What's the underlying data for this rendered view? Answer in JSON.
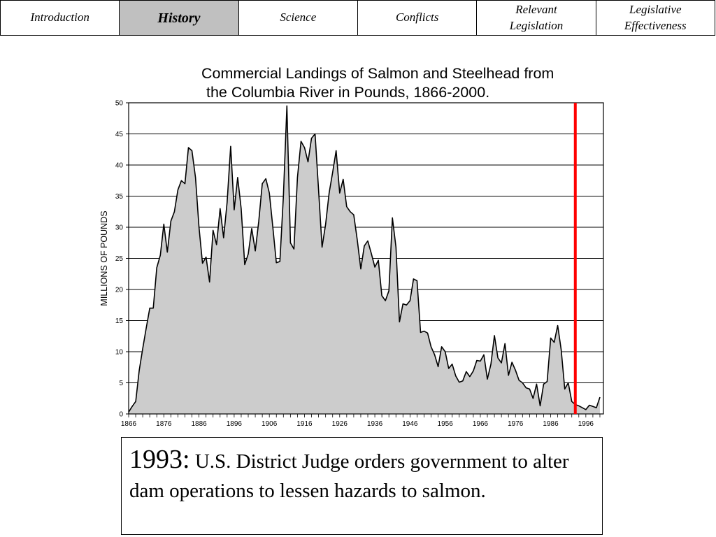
{
  "nav": {
    "tabs": [
      {
        "lines": [
          "Introduction"
        ],
        "active": false
      },
      {
        "lines": [
          "History"
        ],
        "active": true
      },
      {
        "lines": [
          "Science"
        ],
        "active": false
      },
      {
        "lines": [
          "Conflicts"
        ],
        "active": false
      },
      {
        "lines": [
          "Relevant",
          "Legislation"
        ],
        "active": false
      },
      {
        "lines": [
          "Legislative",
          "Effectiveness"
        ],
        "active": false
      }
    ]
  },
  "chart_title": {
    "line1": "Commercial Landings of Salmon and Steelhead from",
    "line2": "the Columbia River in Pounds, 1866-2000."
  },
  "caption": {
    "year": "1993:",
    "text": " U.S. District Judge orders government to alter dam operations to lessen hazards to salmon."
  },
  "chart_data": {
    "type": "area",
    "title": "Commercial Landings of Salmon and Steelhead from the Columbia River in Pounds, 1866-2000.",
    "xlabel": "",
    "ylabel": "MILLIONS OF POUNDS",
    "xlim": [
      1866,
      2001
    ],
    "ylim": [
      0,
      50
    ],
    "x_ticks": [
      1866,
      1876,
      1886,
      1896,
      1906,
      1916,
      1926,
      1936,
      1946,
      1956,
      1966,
      1976,
      1986,
      1996
    ],
    "y_ticks": [
      0,
      5,
      10,
      15,
      20,
      25,
      30,
      35,
      40,
      45,
      50
    ],
    "grid": "horizontal",
    "fill_color": "#cccccc",
    "line_color": "#000000",
    "marker_line": {
      "x": 1993,
      "color": "#ff0000"
    },
    "series": [
      {
        "x": [
          1866,
          1867,
          1868,
          1869,
          1870,
          1871,
          1872,
          1873,
          1874,
          1875,
          1876,
          1877,
          1878,
          1879,
          1880,
          1881,
          1882,
          1883,
          1884,
          1885,
          1886,
          1887,
          1888,
          1889,
          1890,
          1891,
          1892,
          1893,
          1894,
          1895,
          1896,
          1897,
          1898,
          1899,
          1900,
          1901,
          1902,
          1903,
          1904,
          1905,
          1906,
          1907,
          1908,
          1909,
          1910,
          1911,
          1912,
          1913,
          1914,
          1915,
          1916,
          1917,
          1918,
          1919,
          1920,
          1921,
          1922,
          1923,
          1924,
          1925,
          1926,
          1927,
          1928,
          1929,
          1930,
          1931,
          1932,
          1933,
          1934,
          1935,
          1936,
          1937,
          1938,
          1939,
          1940,
          1941,
          1942,
          1943,
          1944,
          1945,
          1946,
          1947,
          1948,
          1949,
          1950,
          1951,
          1952,
          1953,
          1954,
          1955,
          1956,
          1957,
          1958,
          1959,
          1960,
          1961,
          1962,
          1963,
          1964,
          1965,
          1966,
          1967,
          1968,
          1969,
          1970,
          1971,
          1972,
          1973,
          1974,
          1975,
          1976,
          1977,
          1978,
          1979,
          1980,
          1981,
          1982,
          1983,
          1984,
          1985,
          1986,
          1987,
          1988,
          1989,
          1990,
          1991,
          1992,
          1993,
          1994,
          1995,
          1996,
          1997,
          1998,
          1999,
          2000
        ],
        "values": [
          0.3,
          1.2,
          2.0,
          7.0,
          10.5,
          13.8,
          17.0,
          17.0,
          23.5,
          25.5,
          30.5,
          26.0,
          31.0,
          32.5,
          36.0,
          37.5,
          37.0,
          42.8,
          42.3,
          38.0,
          30.0,
          24.2,
          25.2,
          21.2,
          29.5,
          27.2,
          33.0,
          28.3,
          34.0,
          43.0,
          32.8,
          38.0,
          33.0,
          24.0,
          25.7,
          29.8,
          26.2,
          31.0,
          37.0,
          37.8,
          35.5,
          30.0,
          24.3,
          24.5,
          35.0,
          49.5,
          27.5,
          26.5,
          38.0,
          43.8,
          42.8,
          40.5,
          44.3,
          45.0,
          36.0,
          26.8,
          30.5,
          35.5,
          38.8,
          42.3,
          35.5,
          37.7,
          33.3,
          32.5,
          32.0,
          28.0,
          23.3,
          27.0,
          27.8,
          25.8,
          23.6,
          24.7,
          19.0,
          18.2,
          19.8,
          31.5,
          26.8,
          14.8,
          17.7,
          17.5,
          18.2,
          21.7,
          21.4,
          13.1,
          13.3,
          13.0,
          10.8,
          9.5,
          7.6,
          10.8,
          10.0,
          7.3,
          8.0,
          6.1,
          5.1,
          5.3,
          6.8,
          6.0,
          6.9,
          8.6,
          8.5,
          9.5,
          5.6,
          8.0,
          12.6,
          9.0,
          8.2,
          11.3,
          6.2,
          8.3,
          7.0,
          5.4,
          5.0,
          4.2,
          4.0,
          2.5,
          4.8,
          1.3,
          4.8,
          5.2,
          12.2,
          11.5,
          14.2,
          10.3,
          4.0,
          5.0,
          2.0,
          1.5,
          1.3,
          1.0,
          0.7,
          1.4,
          1.2,
          1.0,
          2.7
        ]
      }
    ]
  }
}
